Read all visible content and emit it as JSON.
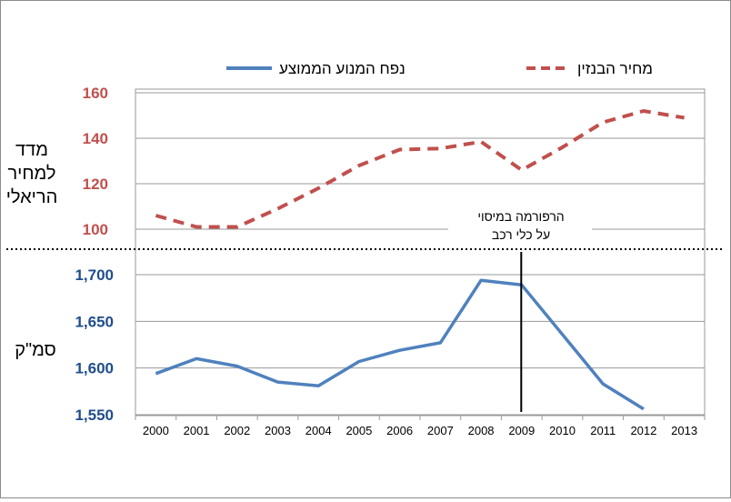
{
  "chart_data": {
    "type": "line",
    "categories": [
      "2000",
      "2001",
      "2002",
      "2003",
      "2004",
      "2005",
      "2006",
      "2007",
      "2008",
      "2009",
      "2010",
      "2011",
      "2012",
      "2013"
    ],
    "series": [
      {
        "name": "מחיר הבנזין",
        "color": "#c0504d",
        "style": "dashed",
        "axis": "top",
        "values": [
          106,
          101,
          101,
          109,
          118,
          128,
          135,
          135.5,
          138.5,
          126,
          136,
          147,
          152,
          149
        ]
      },
      {
        "name": "נפח המנוע הממוצע",
        "color": "#4f81bd",
        "style": "solid",
        "axis": "bottom",
        "values": [
          1594,
          1610,
          1602,
          1585,
          1581,
          1607,
          1619,
          1627,
          1694,
          1689,
          1636,
          1583,
          1556,
          null
        ]
      }
    ],
    "top_axis": {
      "label_lines": [
        "מדד",
        "למחיר",
        "הריאלי"
      ],
      "ticks": [
        100,
        120,
        140,
        160
      ],
      "tick_labels": [
        "100",
        "120",
        "140",
        "160"
      ],
      "color": "#c0504d",
      "range": [
        100,
        160
      ]
    },
    "bottom_axis": {
      "label": "סמ\"ק",
      "ticks": [
        1550,
        1600,
        1650,
        1700
      ],
      "tick_labels": [
        "1,550",
        "1,600",
        "1,650",
        "1,700"
      ],
      "color": "#1f4e8c",
      "range": [
        1550,
        1700
      ]
    },
    "annotation": {
      "lines": [
        "הרפורמה במיסוי",
        "על כלי רכב"
      ],
      "year": "2009"
    },
    "grid": true,
    "legend": "top"
  }
}
